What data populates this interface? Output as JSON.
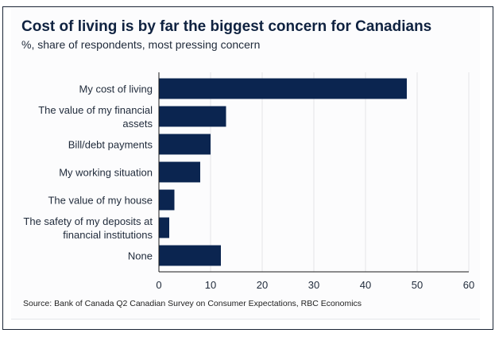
{
  "chart_data": {
    "type": "bar",
    "orientation": "horizontal",
    "title": "Cost of living is by far the biggest concern for Canadians",
    "subtitle": "%, share of respondents, most pressing concern",
    "categories": [
      [
        "My cost of living"
      ],
      [
        "The value of my financial",
        "assets"
      ],
      [
        "Bill/debt payments"
      ],
      [
        "My working situation"
      ],
      [
        "The value of my house"
      ],
      [
        "The safety of my deposits at",
        "financial institutions"
      ],
      [
        "None"
      ]
    ],
    "values": [
      48,
      13,
      10,
      8,
      3,
      2,
      12
    ],
    "xlabel": "",
    "ylabel": "",
    "xlim": [
      0,
      60
    ],
    "xticks": [
      "0",
      "10",
      "20",
      "30",
      "40",
      "50",
      "60"
    ],
    "grid": true,
    "legend": "none",
    "bar_color": "#0b2550",
    "source": "Source: Bank of Canada Q2 Canadian Survey on Consumer Expectations, RBC Economics"
  }
}
